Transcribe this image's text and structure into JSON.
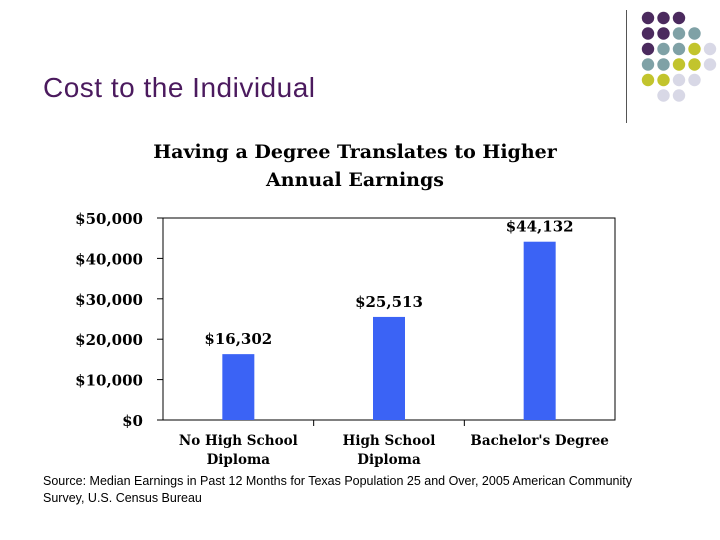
{
  "slide": {
    "title": "Cost to the Individual",
    "source": "Source: Median Earnings in Past 12 Months for Texas Population 25 and Over, 2005 American Community Survey, U.S. Census Bureau"
  },
  "decor": {
    "dot_colors": {
      "purple": "#4b2a5e",
      "teal": "#7fa1a6",
      "olive": "#c2c42d",
      "lavender": "#d8d8e6"
    },
    "dot_pattern": [
      [
        "purple",
        "purple",
        "purple",
        "",
        ""
      ],
      [
        "purple",
        "purple",
        "teal",
        "teal",
        ""
      ],
      [
        "purple",
        "teal",
        "teal",
        "olive",
        "lavender"
      ],
      [
        "teal",
        "teal",
        "olive",
        "olive",
        "lavender"
      ],
      [
        "olive",
        "olive",
        "lavender",
        "lavender",
        ""
      ],
      [
        "",
        "lavender",
        "lavender",
        "",
        ""
      ]
    ]
  },
  "chart_data": {
    "type": "bar",
    "title_line1": "Having a Degree Translates to Higher",
    "title_line2": "Annual Earnings",
    "categories": [
      [
        "No High School",
        "Diploma"
      ],
      [
        "High School",
        "Diploma"
      ],
      [
        "Bachelor's Degree"
      ]
    ],
    "values": [
      16302,
      25513,
      44132
    ],
    "value_labels": [
      "$16,302",
      "$25,513",
      "$44,132"
    ],
    "ylim": [
      0,
      50000
    ],
    "yticks": [
      0,
      10000,
      20000,
      30000,
      40000,
      50000
    ],
    "ytick_labels": [
      "$0",
      "$10,000",
      "$20,000",
      "$30,000",
      "$40,000",
      "$50,000"
    ],
    "bar_color": "#3b63f5",
    "grid": false
  }
}
